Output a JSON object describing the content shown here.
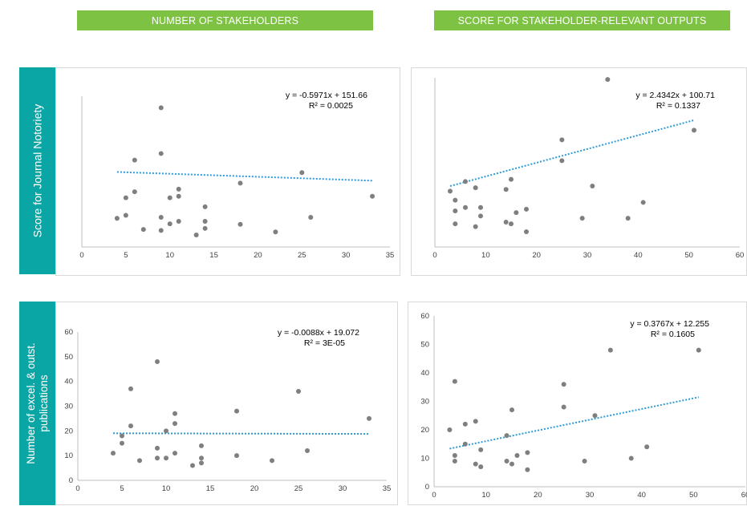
{
  "theme": {
    "header_green": "#7dc242",
    "side_teal": "#0aa6a6",
    "point_color": "#7f7f7f",
    "trend_color": "#2e9bd6"
  },
  "headers": {
    "left": "NUMBER OF STAKEHOLDERS",
    "right": "SCORE FOR STAKEHOLDER-RELEVANT OUTPUTS"
  },
  "side_labels": {
    "top": "Score for Journal Notoriety",
    "bottom_line1": "Number  of excel. & outst.",
    "bottom_line2": "publications"
  },
  "chart_data": [
    {
      "id": "c1",
      "type": "scatter",
      "title": "",
      "xlabel": "",
      "ylabel": "",
      "xlim": [
        0,
        35
      ],
      "xticks": [
        0,
        5,
        10,
        15,
        20,
        25,
        30,
        35
      ],
      "ylim": [
        0,
        300
      ],
      "show_yticks": false,
      "trend": {
        "slope": -0.5971,
        "intercept": 151.66,
        "x_range": [
          4,
          33
        ]
      },
      "equation": "y = -0.5971x + 151.66",
      "r2": "R² = 0.0025",
      "points": [
        [
          4,
          57
        ],
        [
          5,
          63
        ],
        [
          5,
          98
        ],
        [
          6,
          173
        ],
        [
          6,
          110
        ],
        [
          7,
          35
        ],
        [
          9,
          277
        ],
        [
          9,
          186
        ],
        [
          9,
          33
        ],
        [
          9,
          59
        ],
        [
          10,
          98
        ],
        [
          10,
          46
        ],
        [
          11,
          101
        ],
        [
          11,
          115
        ],
        [
          11,
          51
        ],
        [
          13,
          24
        ],
        [
          14,
          80
        ],
        [
          14,
          51
        ],
        [
          14,
          37
        ],
        [
          18,
          127
        ],
        [
          18,
          45
        ],
        [
          22,
          30
        ],
        [
          25,
          148
        ],
        [
          26,
          59
        ],
        [
          33,
          101
        ]
      ]
    },
    {
      "id": "c2",
      "type": "scatter",
      "title": "",
      "xlabel": "",
      "ylabel": "",
      "xlim": [
        0,
        60
      ],
      "xticks": [
        0,
        10,
        20,
        30,
        40,
        50,
        60
      ],
      "ylim": [
        0,
        300
      ],
      "show_yticks": false,
      "trend": {
        "slope": 2.4342,
        "intercept": 100.71,
        "x_range": [
          3,
          51
        ]
      },
      "equation": "y = 2.4342x + 100.71",
      "r2": "R² = 0.1337",
      "points": [
        [
          3,
          99
        ],
        [
          4,
          83
        ],
        [
          4,
          64
        ],
        [
          4,
          41
        ],
        [
          6,
          116
        ],
        [
          6,
          70
        ],
        [
          8,
          105
        ],
        [
          8,
          36
        ],
        [
          9,
          55
        ],
        [
          9,
          70
        ],
        [
          14,
          102
        ],
        [
          14,
          44
        ],
        [
          15,
          41
        ],
        [
          15,
          120
        ],
        [
          16,
          61
        ],
        [
          18,
          27
        ],
        [
          18,
          67
        ],
        [
          25,
          153
        ],
        [
          25,
          190
        ],
        [
          29,
          51
        ],
        [
          31,
          108
        ],
        [
          34,
          297
        ],
        [
          38,
          51
        ],
        [
          41,
          79
        ],
        [
          51,
          207
        ]
      ]
    },
    {
      "id": "c3",
      "type": "scatter",
      "title": "",
      "xlabel": "",
      "ylabel": "",
      "xlim": [
        0,
        35
      ],
      "xticks": [
        0,
        5,
        10,
        15,
        20,
        25,
        30,
        35
      ],
      "ylim": [
        0,
        60
      ],
      "yticks": [
        0,
        10,
        20,
        30,
        40,
        50,
        60
      ],
      "show_yticks": true,
      "trend": {
        "slope": -0.0088,
        "intercept": 19.072,
        "x_range": [
          4,
          33
        ]
      },
      "equation": "y = -0.0088x + 19.072",
      "r2": "R² = 3E-05",
      "points": [
        [
          4,
          11
        ],
        [
          5,
          15
        ],
        [
          5,
          18
        ],
        [
          6,
          37
        ],
        [
          6,
          22
        ],
        [
          7,
          8
        ],
        [
          9,
          48
        ],
        [
          9,
          13
        ],
        [
          9,
          9
        ],
        [
          10,
          20
        ],
        [
          10,
          9
        ],
        [
          11,
          27
        ],
        [
          11,
          23
        ],
        [
          11,
          11
        ],
        [
          13,
          6
        ],
        [
          14,
          14
        ],
        [
          14,
          9
        ],
        [
          14,
          7
        ],
        [
          18,
          28
        ],
        [
          18,
          10
        ],
        [
          22,
          8
        ],
        [
          25,
          36
        ],
        [
          26,
          12
        ],
        [
          33,
          25
        ]
      ]
    },
    {
      "id": "c4",
      "type": "scatter",
      "title": "",
      "xlabel": "",
      "ylabel": "",
      "xlim": [
        0,
        60
      ],
      "xticks": [
        0,
        10,
        20,
        30,
        40,
        50,
        60
      ],
      "ylim": [
        0,
        60
      ],
      "yticks": [
        0,
        10,
        20,
        30,
        40,
        50,
        60
      ],
      "show_yticks": true,
      "trend": {
        "slope": 0.3767,
        "intercept": 12.255,
        "x_range": [
          3,
          51
        ]
      },
      "equation": "y = 0.3767x + 12.255",
      "r2": "R² = 0.1605",
      "points": [
        [
          3,
          20
        ],
        [
          4,
          37
        ],
        [
          4,
          11
        ],
        [
          4,
          9
        ],
        [
          6,
          22
        ],
        [
          6,
          15
        ],
        [
          8,
          23
        ],
        [
          8,
          8
        ],
        [
          9,
          13
        ],
        [
          9,
          7
        ],
        [
          14,
          18
        ],
        [
          14,
          9
        ],
        [
          15,
          27
        ],
        [
          15,
          8
        ],
        [
          16,
          11
        ],
        [
          18,
          12
        ],
        [
          18,
          6
        ],
        [
          25,
          36
        ],
        [
          25,
          28
        ],
        [
          29,
          9
        ],
        [
          31,
          25
        ],
        [
          34,
          48
        ],
        [
          38,
          10
        ],
        [
          41,
          14
        ],
        [
          51,
          48
        ]
      ]
    }
  ]
}
